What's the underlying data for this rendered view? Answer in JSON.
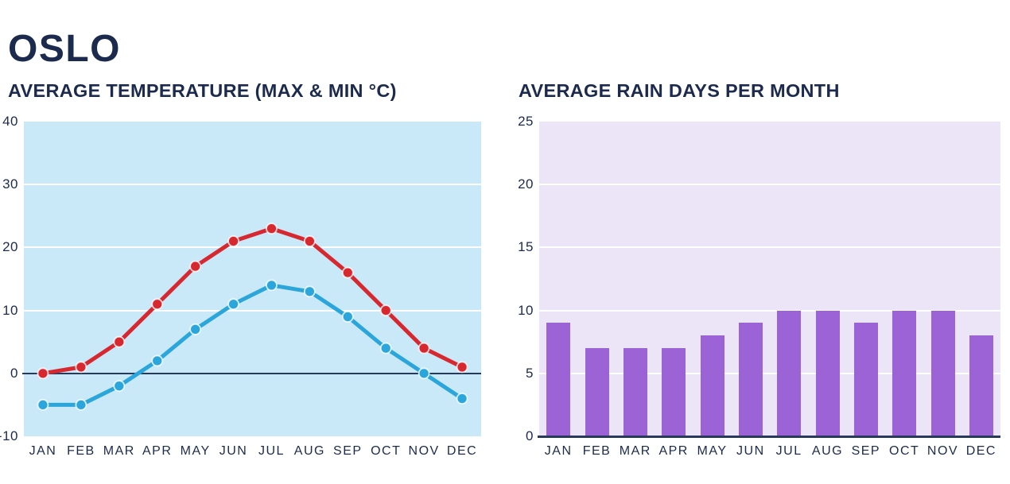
{
  "header": {
    "title": "OSLO"
  },
  "colors": {
    "text_navy": "#1c2b4d",
    "axis_navy": "#27395c",
    "gridline_white": "#ffffff",
    "temp_plot_bg": "#c9e8f8",
    "temp_max_red": "#d7282f",
    "temp_min_blue": "#2aa6db",
    "rain_plot_bg": "#ece5f7",
    "rain_bar_purple": "#9b63d6"
  },
  "chart_data": [
    {
      "type": "line",
      "title": "AVERAGE TEMPERATURE (MAX & MIN °C)",
      "categories": [
        "JAN",
        "FEB",
        "MAR",
        "APR",
        "MAY",
        "JUN",
        "JUL",
        "AUG",
        "SEP",
        "OCT",
        "NOV",
        "DEC"
      ],
      "series": [
        {
          "name": "max-temperature",
          "color": "#d7282f",
          "values": [
            0,
            1,
            5,
            11,
            17,
            21,
            23,
            21,
            16,
            10,
            4,
            1
          ]
        },
        {
          "name": "min-temperature",
          "color": "#2aa6db",
          "values": [
            -5,
            -5,
            -2,
            2,
            7,
            11,
            14,
            13,
            9,
            4,
            0,
            -4
          ]
        }
      ],
      "xlabel": "",
      "ylabel": "",
      "ylim": [
        -10,
        40
      ],
      "yticks": [
        40,
        30,
        20,
        10,
        0,
        -10
      ],
      "grid": true,
      "legend": "none",
      "zero_axis_line": true
    },
    {
      "type": "bar",
      "title": "AVERAGE RAIN DAYS PER MONTH",
      "categories": [
        "JAN",
        "FEB",
        "MAR",
        "APR",
        "MAY",
        "JUN",
        "JUL",
        "AUG",
        "SEP",
        "OCT",
        "NOV",
        "DEC"
      ],
      "values": [
        9,
        7,
        7,
        7,
        8,
        9,
        10,
        10,
        9,
        10,
        10,
        8
      ],
      "xlabel": "",
      "ylabel": "",
      "ylim": [
        0,
        25
      ],
      "yticks": [
        25,
        20,
        15,
        10,
        5,
        0
      ],
      "grid": true,
      "legend": "none",
      "baseline_axis": true
    }
  ]
}
